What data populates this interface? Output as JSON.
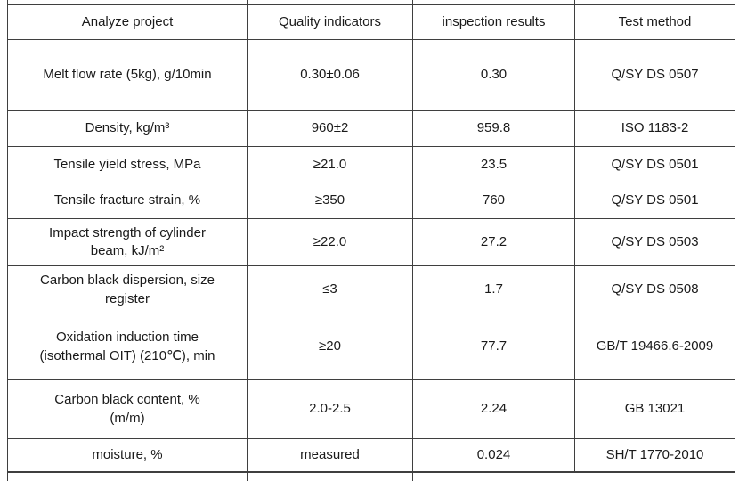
{
  "table": {
    "columns": {
      "project": "Analyze project",
      "indicator": "Quality indicators",
      "result": "inspection results",
      "method": "Test method"
    },
    "rows": [
      {
        "project": "Melt flow rate (5kg), g/10min",
        "indicator": "0.30±0.06",
        "result": "0.30",
        "method": "Q/SY DS 0507"
      },
      {
        "project": "Density, kg/m³",
        "indicator": "960±2",
        "result": "959.8",
        "method": "ISO 1183-2"
      },
      {
        "project": "Tensile yield stress, MPa",
        "indicator": "≥21.0",
        "result": "23.5",
        "method": "Q/SY DS 0501"
      },
      {
        "project": "Tensile fracture strain, %",
        "indicator": "≥350",
        "result": "760",
        "method": "Q/SY DS 0501"
      },
      {
        "project": "Impact strength of cylinder\nbeam, kJ/m²",
        "indicator": "≥22.0",
        "result": "27.2",
        "method": "Q/SY DS 0503"
      },
      {
        "project": "Carbon black dispersion, size\nregister",
        "indicator": "≤3",
        "result": "1.7",
        "method": "Q/SY DS 0508"
      },
      {
        "project": "Oxidation induction time\n(isothermal OIT) (210℃), min",
        "indicator": "≥20",
        "result": "77.7",
        "method": "GB/T 19466.6-2009"
      },
      {
        "project": "Carbon black content, %\n(m/m)",
        "indicator": "2.0-2.5",
        "result": "2.24",
        "method": "GB 13021"
      },
      {
        "project": "moisture, %",
        "indicator": "measured",
        "result": "0.024",
        "method": "SH/T 1770-2010"
      }
    ]
  }
}
